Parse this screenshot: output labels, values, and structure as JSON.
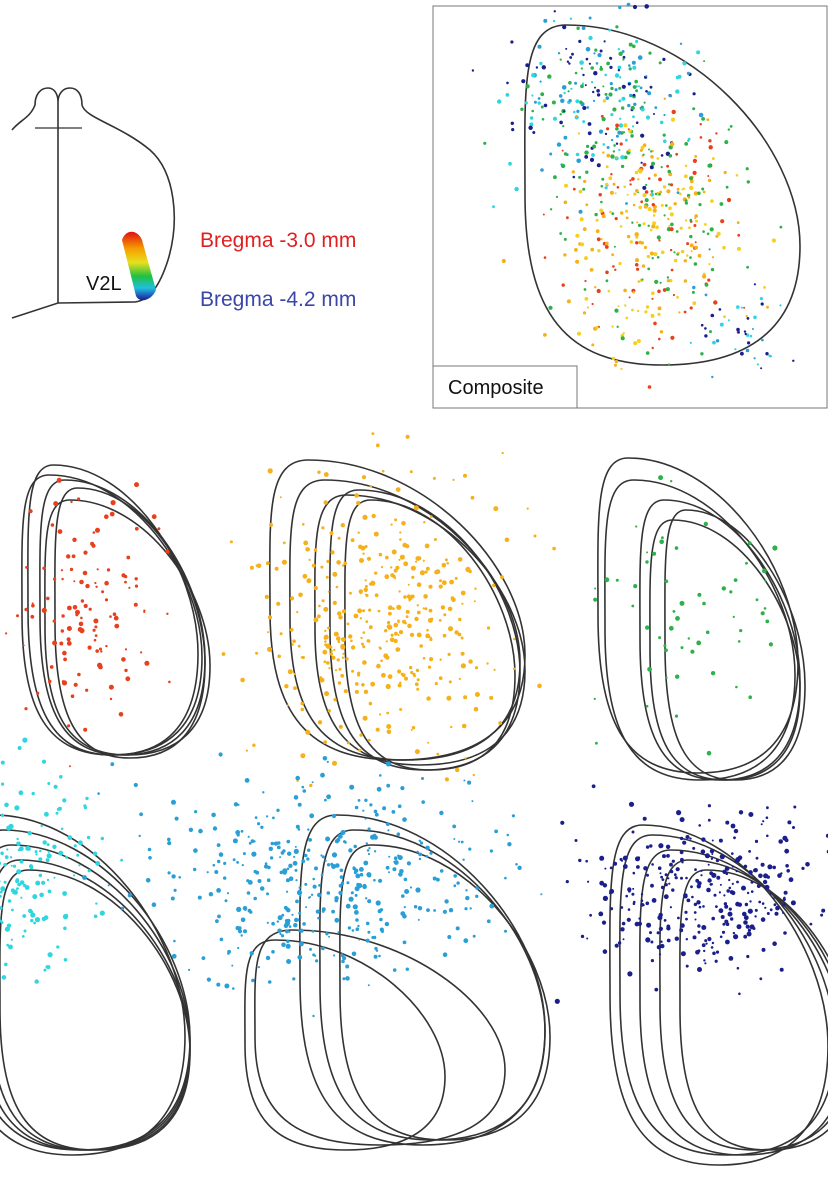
{
  "schematic": {
    "region_label": "V2L"
  },
  "legend": {
    "anterior": "Bregma -3.0 mm",
    "posterior": "Bregma -4.2 mm"
  },
  "composite": {
    "label": "Composite"
  }
}
